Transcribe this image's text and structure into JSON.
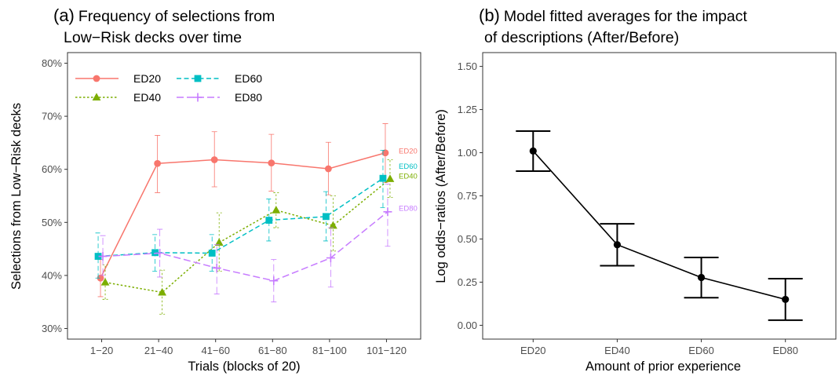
{
  "chart_data": [
    {
      "type": "line",
      "title_letter": "(a)",
      "title_line1": "Frequency of selections from",
      "title_line2": "Low−Risk decks over time",
      "xlabel": "Trials (blocks of 20)",
      "ylabel": "Selections from Low−Risk decks",
      "categories": [
        "1−20",
        "21−40",
        "41−60",
        "61−80",
        "81−100",
        "101−120"
      ],
      "ylim": [
        0.28,
        0.82
      ],
      "yticks": [
        0.3,
        0.4,
        0.5,
        0.6,
        0.7,
        0.8
      ],
      "ytick_labels": [
        "30%",
        "40%",
        "50%",
        "60%",
        "70%",
        "80%"
      ],
      "grid": false,
      "legend_position": "top-left",
      "series": [
        {
          "name": "ED20",
          "color": "#F8766D",
          "marker": "circle",
          "dash": "solid",
          "values": [
            0.395,
            0.611,
            0.618,
            0.612,
            0.601,
            0.631
          ],
          "lower": [
            0.36,
            0.556,
            0.567,
            0.559,
            0.552,
            0.575
          ],
          "upper": [
            0.43,
            0.664,
            0.671,
            0.666,
            0.651,
            0.686
          ]
        },
        {
          "name": "ED40",
          "color": "#7CAE00",
          "marker": "triangle",
          "dash": "dotted",
          "values": [
            0.387,
            0.368,
            0.462,
            0.523,
            0.494,
            0.582
          ],
          "lower": [
            0.355,
            0.327,
            0.408,
            0.49,
            0.446,
            0.547
          ],
          "upper": [
            0.42,
            0.41,
            0.518,
            0.556,
            0.55,
            0.618
          ]
        },
        {
          "name": "ED60",
          "color": "#00BFC4",
          "marker": "square",
          "dash": "dashed",
          "values": [
            0.436,
            0.443,
            0.442,
            0.504,
            0.511,
            0.583
          ],
          "lower": [
            0.395,
            0.408,
            0.408,
            0.465,
            0.465,
            0.528
          ],
          "upper": [
            0.48,
            0.477,
            0.477,
            0.544,
            0.558,
            0.636
          ]
        },
        {
          "name": "ED80",
          "color": "#C77CFF",
          "marker": "plus",
          "dash": "longdash",
          "values": [
            0.436,
            0.442,
            0.414,
            0.39,
            0.433,
            0.52
          ],
          "lower": [
            0.4,
            0.397,
            0.365,
            0.35,
            0.378,
            0.455
          ],
          "upper": [
            0.475,
            0.487,
            0.458,
            0.43,
            0.49,
            0.572
          ]
        }
      ],
      "end_labels": [
        "ED20",
        "ED60",
        "ED40",
        "ED80"
      ]
    },
    {
      "type": "line",
      "title_letter": "(b)",
      "title_line1": "Model fitted averages for the impact",
      "title_line2": "of descriptions (After/Before)",
      "xlabel": "Amount of prior experience",
      "ylabel": "Log odds−ratios (After/Before)",
      "categories": [
        "ED20",
        "ED40",
        "ED60",
        "ED80"
      ],
      "ylim": [
        -0.08,
        1.58
      ],
      "yticks": [
        0.0,
        0.25,
        0.5,
        0.75,
        1.0,
        1.25,
        1.5
      ],
      "ytick_labels": [
        "0.00",
        "0.25",
        "0.50",
        "0.75",
        "1.00",
        "1.25",
        "1.50"
      ],
      "grid": false,
      "series": [
        {
          "color": "#000000",
          "values": [
            1.01,
            0.467,
            0.277,
            0.15
          ],
          "lower": [
            0.893,
            0.345,
            0.16,
            0.03
          ],
          "upper": [
            1.125,
            0.588,
            0.393,
            0.27
          ]
        }
      ]
    }
  ]
}
